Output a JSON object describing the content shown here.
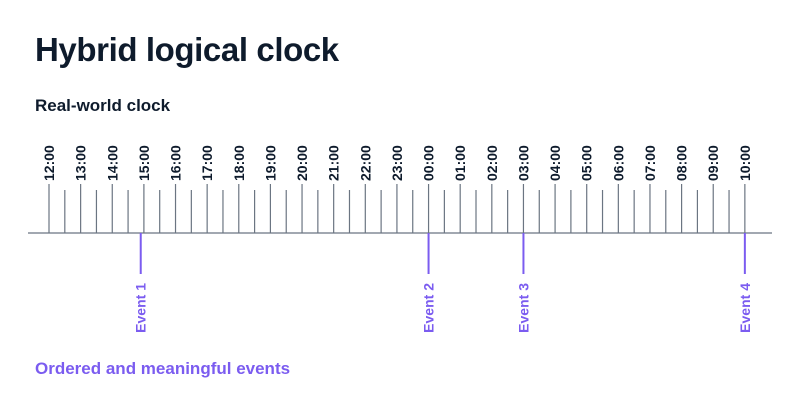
{
  "title": "Hybrid logical clock",
  "subtitle": "Real-world clock",
  "footer": "Ordered and meaningful events",
  "colors": {
    "text": "#0e1b2c",
    "accent": "#7b5cf0",
    "line": "#6b7582"
  },
  "hours": [
    "12:00",
    "13:00",
    "14:00",
    "15:00",
    "16:00",
    "17:00",
    "18:00",
    "19:00",
    "20:00",
    "21:00",
    "22:00",
    "23:00",
    "00:00",
    "01:00",
    "02:00",
    "03:00",
    "04:00",
    "05:00",
    "06:00",
    "07:00",
    "08:00",
    "09:00",
    "10:00"
  ],
  "events": [
    {
      "label": "Event 1",
      "hour_index": 2.9
    },
    {
      "label": "Event 2",
      "hour_index": 12.0
    },
    {
      "label": "Event 3",
      "hour_index": 15.0
    },
    {
      "label": "Event 4",
      "hour_index": 22.0
    }
  ]
}
